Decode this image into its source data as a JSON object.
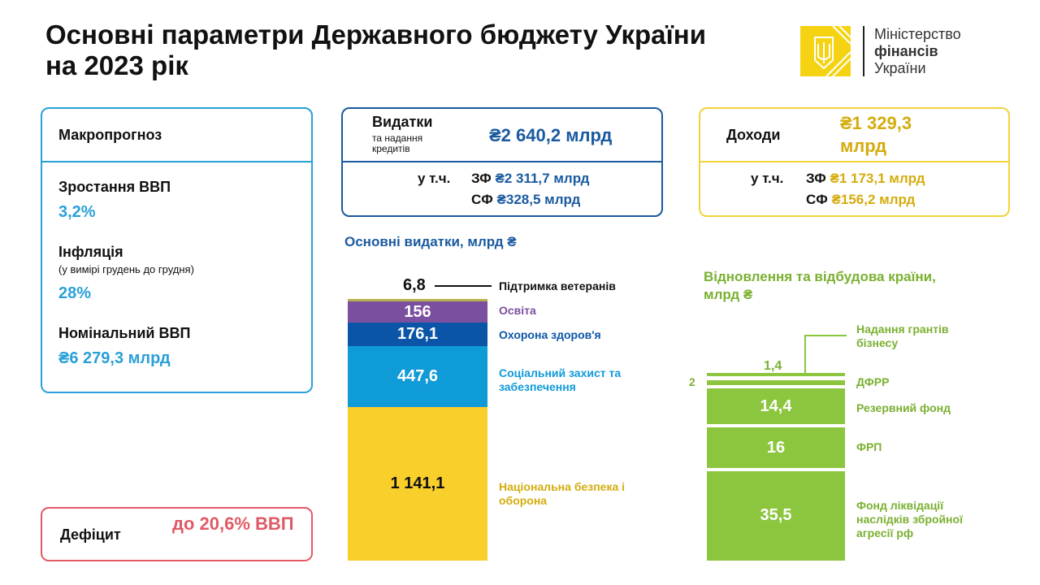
{
  "title": "Основні параметри Державного бюджету України на 2023 рік",
  "logo": {
    "line1": "Міністерство",
    "line2": "фінансів",
    "line3": "України"
  },
  "macro": {
    "header": "Макропрогноз",
    "items": [
      {
        "label": "Зростання ВВП",
        "value": "3,2%"
      },
      {
        "label": "Інфляція",
        "note": "(у вимірі грудень до грудня)",
        "value": "28%"
      },
      {
        "label": "Номінальний ВВП",
        "value": "₴6 279,3 млрд"
      }
    ]
  },
  "deficit": {
    "label": "Дефіцит",
    "value": "до 20,6% ВВП"
  },
  "expenses": {
    "label": "Видатки",
    "sub": "та надання кредитів",
    "total": "₴2 640,2 млрд",
    "incl": "у т.ч.",
    "zf_label": "ЗФ",
    "zf": "₴2 311,7 млрд",
    "sf_label": "СФ",
    "sf": "₴328,5 млрд"
  },
  "income": {
    "label": "Доходи",
    "total": "₴1 329,3 млрд",
    "incl": "у т.ч.",
    "zf_label": "ЗФ",
    "zf": "₴1 173,1 млрд",
    "sf_label": "СФ",
    "sf": "₴156,2 млрд"
  },
  "colors": {
    "blue": "#2aa0d8",
    "navy": "#1a5aa0",
    "yellow": "#f9cf2c",
    "green": "#8cc63f",
    "purple": "#7b4fa0",
    "red": "#e05a66"
  },
  "chart_data": [
    {
      "type": "bar",
      "stacked": true,
      "title": "Основні видатки, млрд ₴",
      "categories": [
        "Національна безпека і оборона",
        "Соціальний захист та забезпечення",
        "Охорона здоров'я",
        "Освіта",
        "Підтримка ветеранів"
      ],
      "values": [
        1141.1,
        447.6,
        176.1,
        156,
        6.8
      ],
      "labels": [
        "1 141,1",
        "447,6",
        "176,1",
        "156",
        "6,8"
      ],
      "colors": [
        "#f9cf2c",
        "#0f9ad8",
        "#0b55a8",
        "#7b4fa0",
        "#b5b04a"
      ]
    },
    {
      "type": "bar",
      "stacked": true,
      "title": "Відновлення та відбудова країни, млрд ₴",
      "categories": [
        "Фонд ліквідації наслідків збройної агресії рф",
        "ФРП",
        "Резервний фонд",
        "ДФРР",
        "Надання грантів бізнесу"
      ],
      "values": [
        35.5,
        16,
        14.4,
        2,
        1.4
      ],
      "labels": [
        "35,5",
        "16",
        "14,4",
        "2",
        "1,4"
      ],
      "colors": [
        "#8cc63f",
        "#8cc63f",
        "#8cc63f",
        "#8cc63f",
        "#8cc63f"
      ]
    }
  ]
}
